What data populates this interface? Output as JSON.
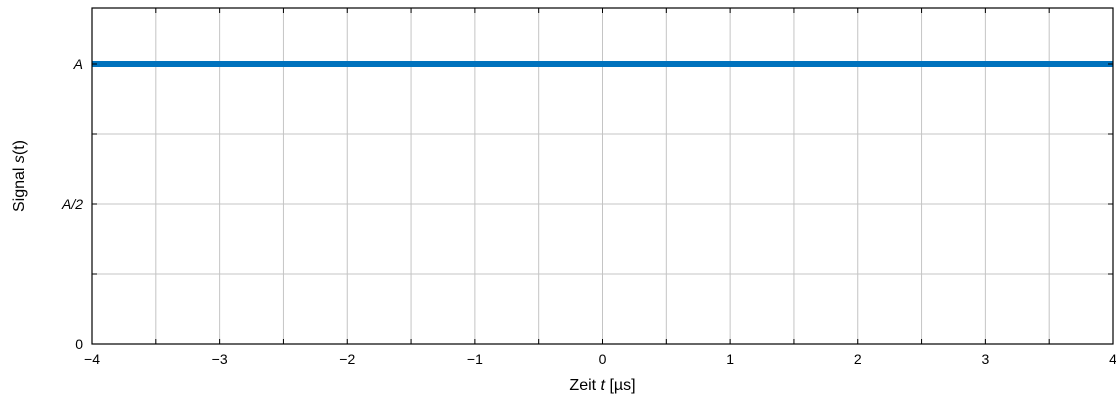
{
  "chart_data": {
    "type": "line",
    "xlabel": {
      "prefix": "Zeit ",
      "var": "t",
      "suffix": " [µs]"
    },
    "ylabel": {
      "prefix": "Signal ",
      "var": "s",
      "suffix": "(t)"
    },
    "xlim": [
      -4,
      4
    ],
    "ylim": [
      0,
      1.2
    ],
    "x_ticks": [
      -4,
      -3,
      -2,
      -1,
      0,
      1,
      2,
      3,
      4
    ],
    "x_tick_labels": [
      "−4",
      "−3",
      "−2",
      "−1",
      "0",
      "1",
      "2",
      "3",
      "4"
    ],
    "x_minor_ticks": [
      -3.5,
      -2.5,
      -1.5,
      -0.5,
      0.5,
      1.5,
      2.5,
      3.5
    ],
    "y_ticks": [
      0,
      0.5,
      1
    ],
    "y_tick_labels": [
      "0",
      "A/2",
      "A"
    ],
    "y_minor_ticks": [
      0.25,
      0.75,
      1.25
    ],
    "grid": true,
    "series": [
      {
        "x": [
          -4,
          4
        ],
        "y": [
          1,
          1
        ],
        "color": "#0072bd"
      }
    ]
  }
}
